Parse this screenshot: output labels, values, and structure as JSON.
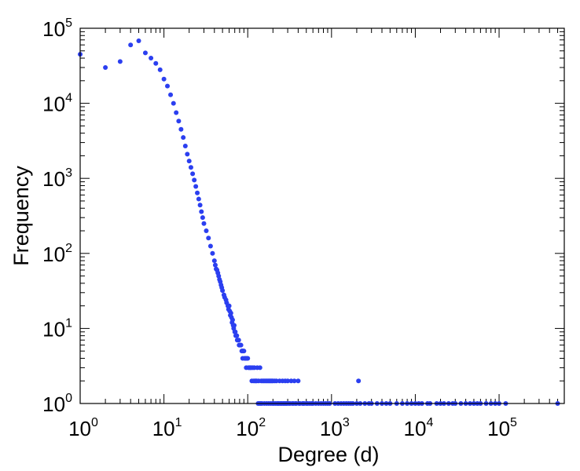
{
  "chart_data": {
    "type": "scatter",
    "title": "",
    "xlabel": "Degree (d)",
    "ylabel": "Frequency",
    "x_scale": "log",
    "y_scale": "log",
    "xlim": [
      1,
      600000
    ],
    "ylim": [
      1,
      100000
    ],
    "grid": false,
    "legend": "none",
    "marker_color": "#2b3ff0",
    "x_ticks": [
      {
        "base": "10",
        "exp": "0",
        "value": 1
      },
      {
        "base": "10",
        "exp": "1",
        "value": 10
      },
      {
        "base": "10",
        "exp": "2",
        "value": 100
      },
      {
        "base": "10",
        "exp": "3",
        "value": 1000
      },
      {
        "base": "10",
        "exp": "4",
        "value": 10000
      },
      {
        "base": "10",
        "exp": "5",
        "value": 100000
      }
    ],
    "y_ticks": [
      {
        "base": "10",
        "exp": "0",
        "value": 1
      },
      {
        "base": "10",
        "exp": "1",
        "value": 10
      },
      {
        "base": "10",
        "exp": "2",
        "value": 100
      },
      {
        "base": "10",
        "exp": "3",
        "value": 1000
      },
      {
        "base": "10",
        "exp": "4",
        "value": 10000
      },
      {
        "base": "10",
        "exp": "5",
        "value": 100000
      }
    ],
    "series": [
      {
        "x": [
          1,
          2,
          3,
          4,
          5,
          6,
          7,
          8,
          9,
          10,
          11,
          12,
          13,
          14,
          15,
          16,
          17,
          18,
          19,
          20,
          21,
          22,
          23,
          24,
          25,
          26,
          27,
          28,
          29,
          30,
          32,
          34,
          36,
          38,
          40,
          42,
          44,
          46,
          48,
          50,
          53,
          56,
          59,
          62,
          65,
          68,
          72,
          76,
          80,
          85,
          90,
          95,
          100,
          110,
          120,
          130,
          140,
          150,
          160,
          170,
          180,
          190,
          200,
          210,
          220,
          240,
          260,
          280,
          300,
          330,
          360,
          400,
          450,
          500,
          600,
          700,
          800,
          900,
          1100,
          1300,
          1500,
          1700,
          2000,
          2500,
          3000,
          4000,
          5000,
          6000,
          8000,
          10000,
          12000,
          15000,
          20000,
          25000,
          30000,
          40000,
          50000,
          60000,
          80000,
          100000,
          120000,
          500000,
          41,
          43,
          45,
          47,
          49,
          52,
          55,
          58,
          61,
          64,
          67,
          70,
          74,
          78,
          82,
          88,
          92,
          98,
          105,
          115,
          125,
          135,
          145,
          155,
          165,
          175,
          185,
          195,
          230,
          250,
          270,
          290,
          320,
          350,
          380,
          420,
          470,
          550,
          650,
          750,
          850,
          950,
          1200,
          1400,
          1600,
          1800,
          2200,
          2800,
          3500,
          4500,
          7000,
          9000,
          11000,
          14000,
          18000,
          22000,
          28000,
          35000,
          45000,
          55000,
          70000,
          90000,
          60,
          63,
          66,
          69,
          71,
          73,
          75,
          79,
          83,
          86,
          87,
          93,
          96,
          102,
          108,
          112,
          118,
          122,
          128,
          133,
          138,
          143,
          148,
          158,
          168,
          178,
          188,
          198,
          205,
          215,
          225,
          235,
          245,
          255,
          265,
          275,
          285,
          295,
          310,
          340,
          370,
          410,
          460,
          520,
          580,
          2100
        ],
        "y": [
          45000,
          30000,
          36000,
          60000,
          68000,
          47000,
          40000,
          34000,
          28000,
          21000,
          17000,
          13000,
          10000,
          7500,
          5800,
          4500,
          3500,
          2700,
          2100,
          1700,
          1400,
          1150,
          950,
          780,
          640,
          530,
          440,
          360,
          300,
          250,
          200,
          160,
          125,
          100,
          80,
          62,
          55,
          45,
          38,
          32,
          26,
          22,
          18,
          15,
          12,
          10,
          8,
          7,
          6,
          5,
          5,
          4,
          4,
          3,
          3,
          3,
          3,
          2,
          2,
          2,
          2,
          2,
          2,
          2,
          2,
          2,
          2,
          2,
          2,
          2,
          2,
          2,
          1,
          1,
          1,
          1,
          1,
          1,
          1,
          1,
          1,
          1,
          1,
          1,
          1,
          1,
          1,
          1,
          1,
          1,
          1,
          1,
          1,
          1,
          1,
          1,
          1,
          1,
          1,
          1,
          1,
          1,
          70,
          60,
          50,
          42,
          35,
          28,
          24,
          20,
          17,
          14,
          11,
          9,
          8,
          7,
          6,
          5,
          4,
          4,
          3,
          3,
          2,
          2,
          2,
          2,
          2,
          2,
          2,
          2,
          1,
          1,
          1,
          1,
          1,
          1,
          1,
          1,
          1,
          1,
          1,
          1,
          1,
          1,
          1,
          1,
          1,
          1,
          1,
          1,
          1,
          1,
          1,
          1,
          1,
          1,
          1,
          1,
          1,
          1,
          1,
          1,
          1,
          1,
          20,
          16,
          13,
          11,
          9,
          8,
          7,
          6,
          6,
          5,
          4,
          4,
          3,
          3,
          3,
          2,
          2,
          2,
          2,
          1,
          1,
          1,
          1,
          1,
          1,
          1,
          1,
          1,
          1,
          1,
          1,
          1,
          1,
          1,
          1,
          1,
          1,
          1,
          1,
          1,
          1,
          1,
          1,
          1,
          1,
          2
        ]
      }
    ]
  }
}
